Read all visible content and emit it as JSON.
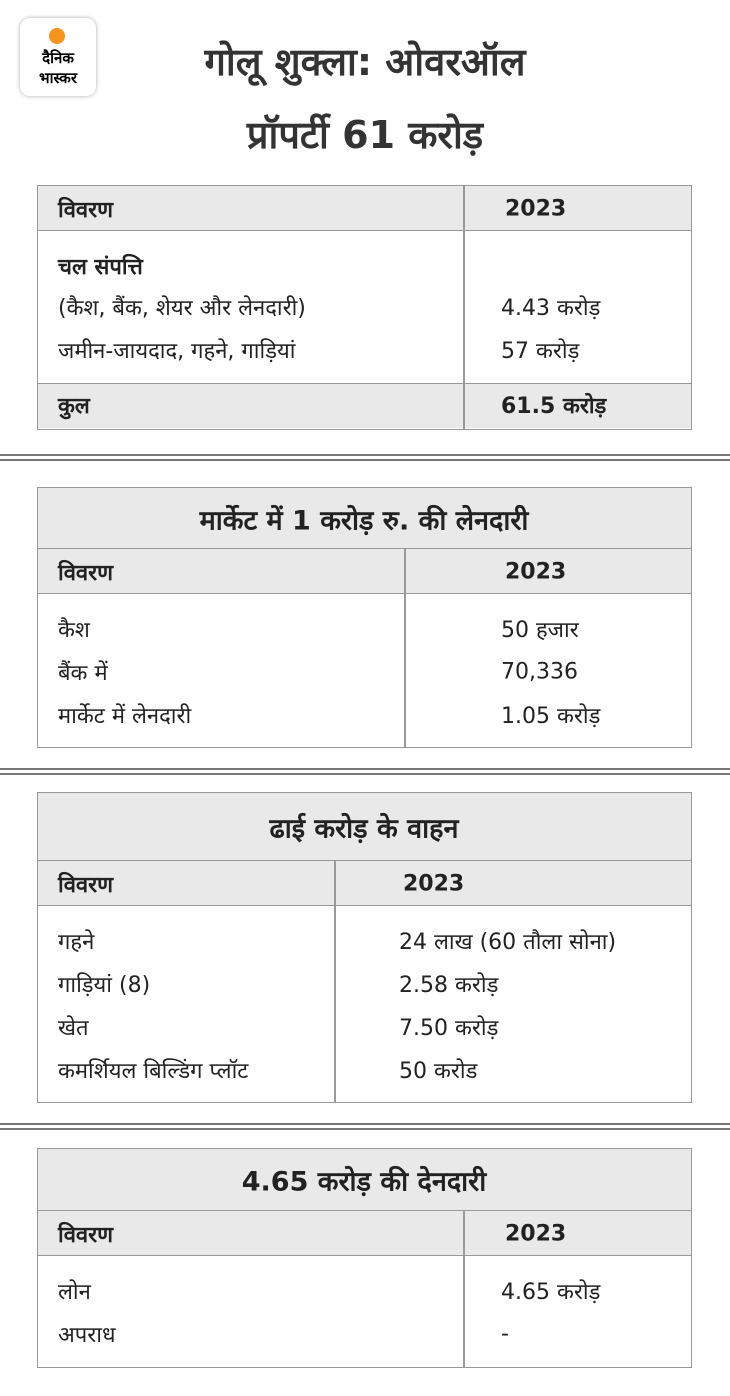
{
  "logo": {
    "line1": "दैनिक",
    "line2": "भास्कर"
  },
  "title": [
    "गोलू शुक्ला: ओवरऑल",
    "प्रॉपर्टी  61 करोड़"
  ],
  "tables": [
    {
      "header": [
        "विवरण",
        "2023"
      ],
      "subheading": "चल संपत्ति",
      "rows": [
        [
          "(कैश, बैंक, शेयर और लेनदारी)",
          "4.43 करोड़"
        ],
        [
          "जमीन-जायदाद, गहने, गाड़ियां",
          "57 करोड़"
        ]
      ],
      "total": [
        "कुल",
        "61.5 करोड़"
      ]
    },
    {
      "title": "मार्केट में 1 करोड़ रु. की लेनदारी",
      "header": [
        "विवरण",
        "2023"
      ],
      "rows": [
        [
          "कैश",
          "50 हजार"
        ],
        [
          "बैंक में",
          "70,336"
        ],
        [
          "मार्केट में लेनदारी",
          "1.05 करोड़"
        ]
      ]
    },
    {
      "title": "ढाई करोड़ के वाहन",
      "header": [
        "विवरण",
        "2023"
      ],
      "rows": [
        [
          "गहने",
          "24 लाख (60 तौला सोना)"
        ],
        [
          "गाड़ियां (8)",
          "2.58 करोड़"
        ],
        [
          "खेत",
          "7.50 करोड़"
        ],
        [
          "कमर्शियल बिल्डिंग प्लॉट",
          "50 करोड"
        ]
      ]
    },
    {
      "title": "4.65 करोड़ की देनदारी",
      "header": [
        "विवरण",
        "2023"
      ],
      "rows": [
        [
          "लोन",
          "4.65 करोड़"
        ],
        [
          "अपराध",
          "-"
        ]
      ]
    }
  ]
}
